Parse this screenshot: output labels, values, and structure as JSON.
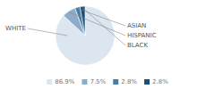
{
  "chart_data": {
    "type": "pie",
    "categories": [
      "WHITE",
      "HISPANIC",
      "ASIAN",
      "BLACK"
    ],
    "values": [
      86.9,
      7.5,
      2.8,
      2.8
    ],
    "value_labels": [
      "86.9%",
      "7.5%",
      "2.8%",
      "2.8%"
    ],
    "colors": [
      "#dce6f1",
      "#8eacc8",
      "#4a7fa5",
      "#1f4e79"
    ],
    "legend": "bottom"
  }
}
